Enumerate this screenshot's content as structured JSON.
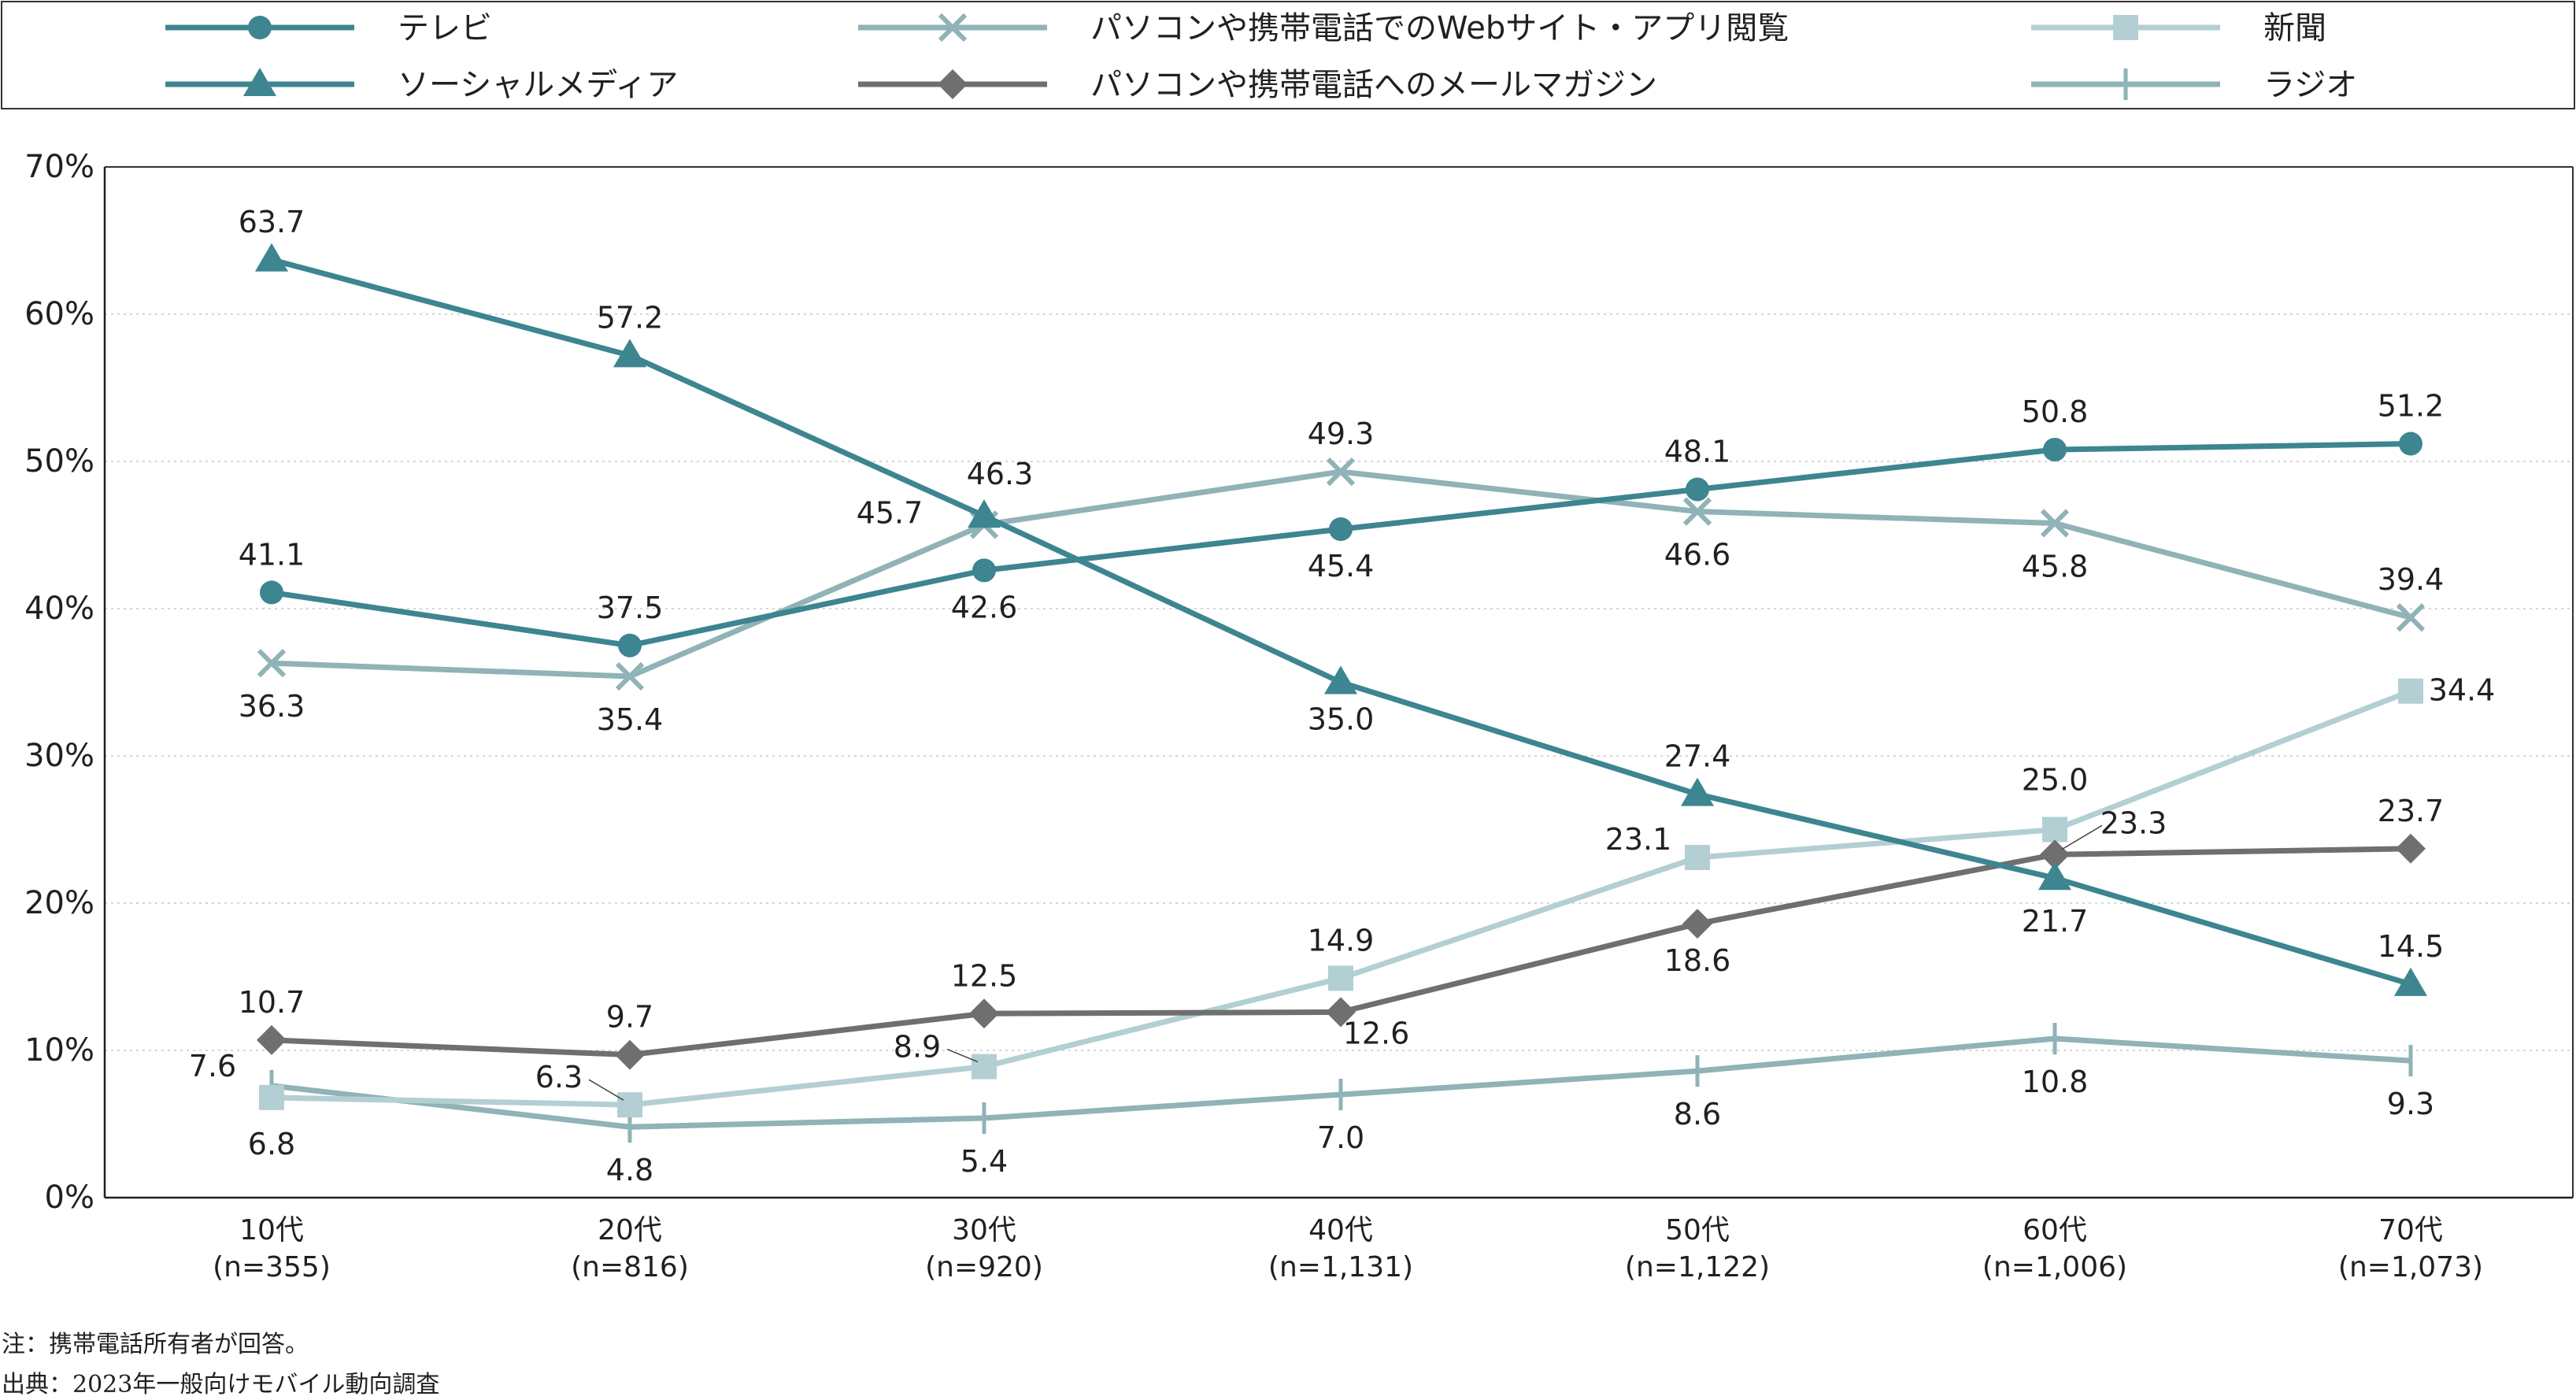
{
  "chart_data": {
    "type": "line",
    "categories": [
      "10代",
      "20代",
      "30代",
      "40代",
      "50代",
      "60代",
      "70代"
    ],
    "sample_sizes": [
      "(n=355)",
      "(n=816)",
      "(n=920)",
      "(n=1,131)",
      "(n=1,122)",
      "(n=1,006)",
      "(n=1,073)"
    ],
    "yticks": [
      "0%",
      "10%",
      "20%",
      "30%",
      "40%",
      "50%",
      "60%",
      "70%"
    ],
    "ylim": [
      0,
      70
    ],
    "grid": true,
    "legend_position": "top",
    "series": [
      {
        "name": "テレビ",
        "marker": "circle",
        "color": "#3d8590",
        "values": [
          41.1,
          37.5,
          42.6,
          45.4,
          48.1,
          50.8,
          51.2
        ],
        "labels": [
          "41.1",
          "37.5",
          "42.6",
          "45.4",
          "48.1",
          "50.8",
          "51.2"
        ]
      },
      {
        "name": "パソコンや携帯電話でのWebサイト・アプリ閲覧",
        "marker": "cross",
        "color": "#8fb3b6",
        "values": [
          36.3,
          35.4,
          45.7,
          49.3,
          46.6,
          45.8,
          39.4
        ],
        "labels": [
          "36.3",
          "35.4",
          "45.7",
          "49.3",
          "46.6",
          "45.8",
          "39.4"
        ]
      },
      {
        "name": "新聞",
        "marker": "square",
        "color": "#b3cfd3",
        "values": [
          6.8,
          6.3,
          8.9,
          14.9,
          23.1,
          25.0,
          34.4
        ],
        "labels": [
          "6.8",
          "6.3",
          "8.9",
          "14.9",
          "23.1",
          "25.0",
          "34.4"
        ]
      },
      {
        "name": "ソーシャルメディア",
        "marker": "triangle",
        "color": "#3d8590",
        "values": [
          63.7,
          57.2,
          46.3,
          35.0,
          27.4,
          21.7,
          14.5
        ],
        "labels": [
          "63.7",
          "57.2",
          "46.3",
          "35.0",
          "27.4",
          "21.7",
          "14.5"
        ]
      },
      {
        "name": "パソコンや携帯電話へのメールマガジン",
        "marker": "diamond",
        "color": "#6f6f6f",
        "values": [
          10.7,
          9.7,
          12.5,
          12.6,
          18.6,
          23.3,
          23.7
        ],
        "labels": [
          "10.7",
          "9.7",
          "12.5",
          "12.6",
          "18.6",
          "23.3",
          "23.7"
        ]
      },
      {
        "name": "ラジオ",
        "marker": "tick",
        "color": "#8fb3b6",
        "values": [
          7.6,
          4.8,
          5.4,
          7.0,
          8.6,
          10.8,
          9.3
        ],
        "labels": [
          "7.6",
          "4.8",
          "5.4",
          "7.0",
          "8.6",
          "10.8",
          "9.3"
        ]
      }
    ]
  },
  "notes": {
    "note": "注：携帯電話所有者が回答。",
    "source": "出典：2023年一般向けモバイル動向調査"
  }
}
